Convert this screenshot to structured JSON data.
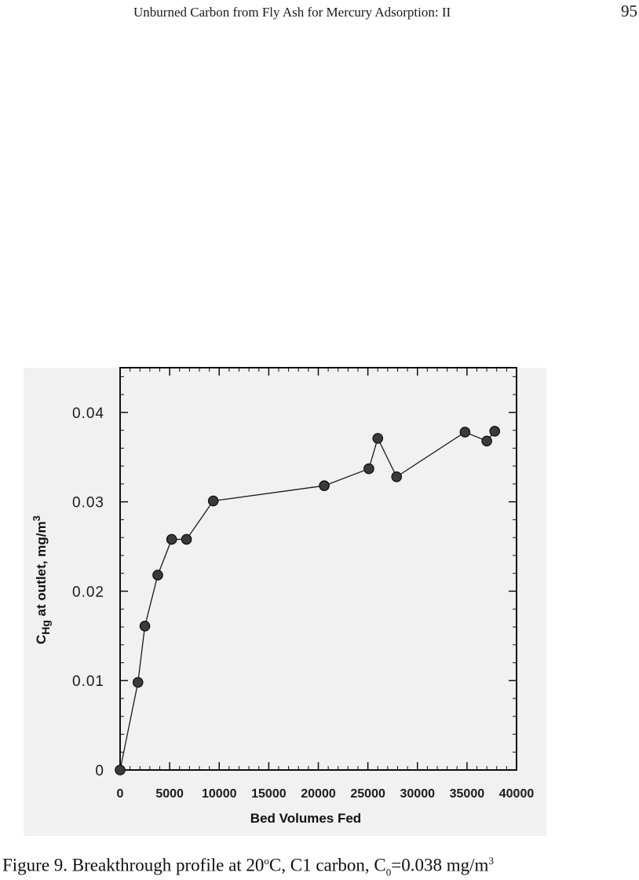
{
  "header": {
    "running_title": "Unburned Carbon from Fly Ash for Mercury Adsorption: II",
    "page_number": "95"
  },
  "caption": {
    "prefix": "Figure 9. Breakthrough profile at 20",
    "degree_sup": "o",
    "mid": "C, C1 carbon, C",
    "sub": "0",
    "suffix": "=0.038 mg/m",
    "unit_sup": "3"
  },
  "chart_data": {
    "type": "line",
    "xlabel": "Bed Volumes Fed",
    "ylabel_main": "C",
    "ylabel_sub": "Hg",
    "ylabel_rest": " at outlet, mg/m",
    "ylabel_sup": "3",
    "xlim": [
      0,
      40000
    ],
    "ylim": [
      0,
      0.045
    ],
    "x_ticks": [
      "0",
      "5000",
      "10000",
      "15000",
      "20000",
      "25000",
      "30000",
      "35000",
      "40000"
    ],
    "x_tick_values": [
      0,
      5000,
      10000,
      15000,
      20000,
      25000,
      30000,
      35000,
      40000
    ],
    "y_ticks": [
      "0",
      "0.01",
      "0.02",
      "0.03",
      "0.04"
    ],
    "y_tick_values": [
      0,
      0.01,
      0.02,
      0.03,
      0.04
    ],
    "grid": false,
    "marker": "filled-circle",
    "series": [
      {
        "x": [
          0,
          1800,
          2500,
          3800,
          5200,
          6700,
          9400,
          20600,
          25100,
          26000,
          27900,
          34800,
          37000,
          37800
        ],
        "y": [
          0,
          0.0098,
          0.0161,
          0.0218,
          0.0258,
          0.0258,
          0.0301,
          0.0318,
          0.0337,
          0.0371,
          0.0328,
          0.0378,
          0.0368,
          0.0379
        ]
      }
    ]
  }
}
